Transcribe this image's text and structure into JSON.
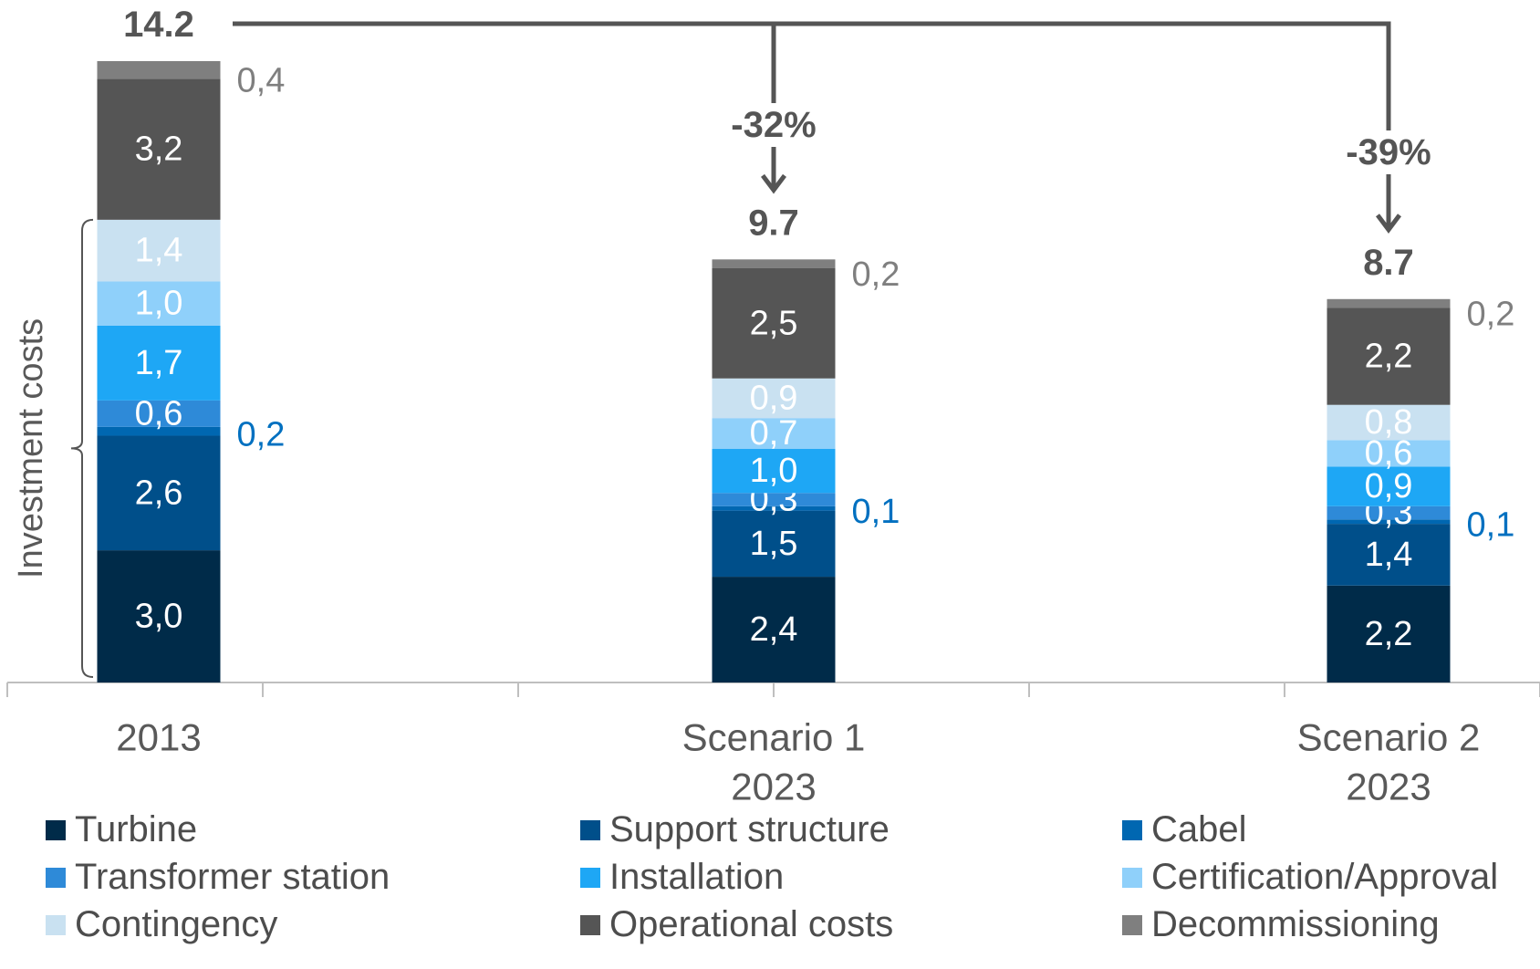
{
  "chart_data": {
    "type": "bar",
    "stacked": true,
    "categories": [
      {
        "label_lines": [
          "2013"
        ]
      },
      {
        "label_lines": [
          "Scenario 1",
          "2023"
        ]
      },
      {
        "label_lines": [
          "Scenario 2",
          "2023"
        ]
      }
    ],
    "series": [
      {
        "name": "Turbine",
        "color": "#002b49",
        "values": [
          3.0,
          2.4,
          2.2
        ],
        "labels": [
          "3,0",
          "2,4",
          "2,2"
        ],
        "label_color": "#ffffff",
        "label_pos": "inside"
      },
      {
        "name": "Support structure",
        "color": "#004f8a",
        "values": [
          2.6,
          1.5,
          1.4
        ],
        "labels": [
          "2,6",
          "1,5",
          "1,4"
        ],
        "label_color": "#ffffff",
        "label_pos": "inside"
      },
      {
        "name": "Cabel",
        "color": "#0067b1",
        "values": [
          0.2,
          0.1,
          0.1
        ],
        "labels": [
          "0,2",
          "0,1",
          "0,1"
        ],
        "label_color": "#0070c0",
        "label_pos": "outside"
      },
      {
        "name": "Transformer station",
        "color": "#2e8ad8",
        "values": [
          0.6,
          0.3,
          0.3
        ],
        "labels": [
          "0,6",
          "0,3",
          "0,3"
        ],
        "label_color": "#ffffff",
        "label_pos": "inside"
      },
      {
        "name": "Installation",
        "color": "#1ea7f5",
        "values": [
          1.7,
          1.0,
          0.9
        ],
        "labels": [
          "1,7",
          "1,0",
          "0,9"
        ],
        "label_color": "#ffffff",
        "label_pos": "inside"
      },
      {
        "name": "Certification/Approval",
        "color": "#8fd0fa",
        "values": [
          1.0,
          0.7,
          0.6
        ],
        "labels": [
          "1,0",
          "0,7",
          "0,6"
        ],
        "label_color": "#ffffff",
        "label_pos": "inside"
      },
      {
        "name": "Contingency",
        "color": "#c9e1f1",
        "values": [
          1.4,
          0.9,
          0.8
        ],
        "labels": [
          "1,4",
          "0,9",
          "0,8"
        ],
        "label_color": "#ffffff",
        "label_pos": "inside"
      },
      {
        "name": "Operational costs",
        "color": "#555555",
        "values": [
          3.2,
          2.5,
          2.2
        ],
        "labels": [
          "3,2",
          "2,5",
          "2,2"
        ],
        "label_color": "#ffffff",
        "label_pos": "inside"
      },
      {
        "name": "Decommissioning",
        "color": "#7f7f7f",
        "values": [
          0.4,
          0.2,
          0.2
        ],
        "labels": [
          "0,4",
          "0,2",
          "0,2"
        ],
        "label_color": "#7f7f7f",
        "label_pos": "outside"
      }
    ],
    "totals": [
      "14.2",
      "9.7",
      "8.7"
    ],
    "changes": [
      {
        "from": 0,
        "to": 1,
        "label": "-32%"
      },
      {
        "from": 0,
        "to": 2,
        "label": "-39%"
      }
    ],
    "bracket_label": "Investment costs",
    "ylim": [
      0,
      14.2
    ],
    "grid": false,
    "legend_position": "bottom"
  }
}
